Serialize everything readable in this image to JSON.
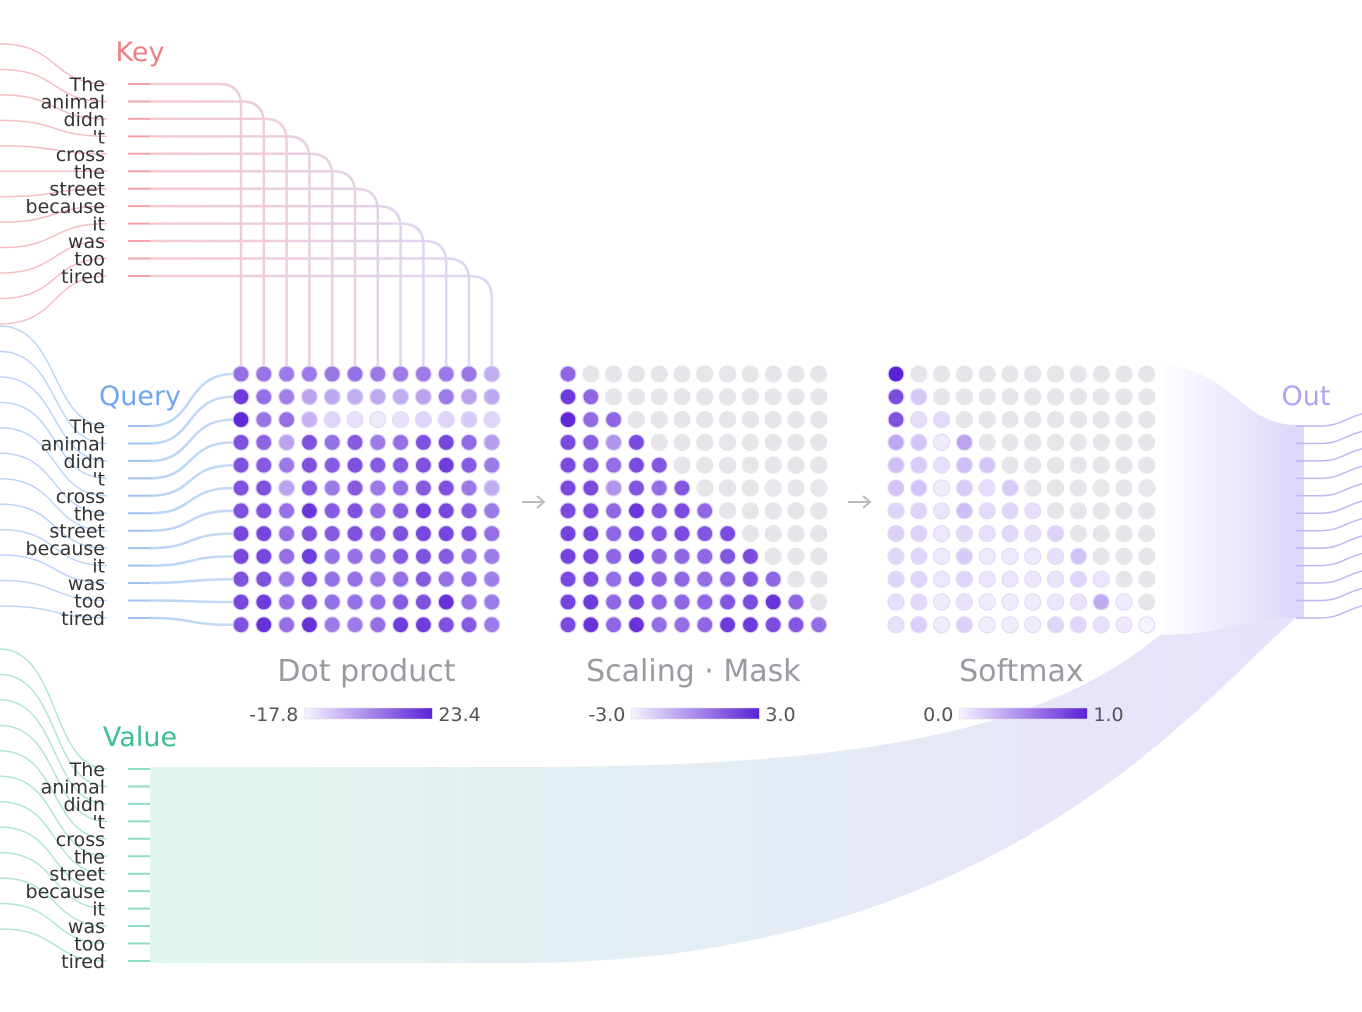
{
  "labels": {
    "key": "Key",
    "query": "Query",
    "value": "Value",
    "out": "Out"
  },
  "tokens": [
    "The",
    "animal",
    "didn",
    "'t",
    "cross",
    "the",
    "street",
    "because",
    "it",
    "was",
    "too",
    "tired"
  ],
  "matrices": [
    {
      "title": "Dot product",
      "range": [
        {
          "value": -17.8,
          "label": "-17.8"
        },
        {
          "value": 23.4,
          "label": "23.4"
        }
      ],
      "values": [
        [
          8,
          7,
          6,
          6,
          7,
          8,
          6,
          6,
          6,
          6,
          7,
          -4
        ],
        [
          18,
          8,
          5,
          -2,
          -3,
          -4,
          -3,
          -4,
          -2,
          6,
          -2,
          -3
        ],
        [
          22,
          7,
          8,
          -5,
          -12,
          -14,
          -16,
          -14,
          -12,
          -12,
          -10,
          -12
        ],
        [
          14,
          10,
          -2,
          14,
          8,
          12,
          6,
          8,
          14,
          16,
          9,
          -1
        ],
        [
          14,
          12,
          6,
          14,
          12,
          14,
          12,
          12,
          14,
          18,
          12,
          6
        ],
        [
          14,
          14,
          -2,
          12,
          6,
          12,
          6,
          8,
          12,
          14,
          6,
          -4
        ],
        [
          14,
          14,
          8,
          19,
          12,
          14,
          8,
          12,
          18,
          16,
          12,
          6
        ],
        [
          16,
          16,
          8,
          14,
          12,
          14,
          12,
          14,
          16,
          16,
          14,
          8
        ],
        [
          16,
          16,
          8,
          18,
          8,
          8,
          8,
          12,
          14,
          12,
          8,
          6
        ],
        [
          14,
          14,
          6,
          14,
          8,
          8,
          6,
          8,
          12,
          8,
          8,
          5
        ],
        [
          16,
          18,
          8,
          14,
          8,
          8,
          8,
          12,
          14,
          20,
          8,
          6
        ],
        [
          14,
          20,
          8,
          20,
          6,
          6,
          8,
          18,
          18,
          14,
          12,
          6
        ]
      ]
    },
    {
      "title": "Scaling · Mask",
      "range": [
        {
          "value": -3,
          "label": "-3.0"
        },
        {
          "value": 3,
          "label": "3.0"
        }
      ],
      "values": [
        [
          1.0,
          null,
          null,
          null,
          null,
          null,
          null,
          null,
          null,
          null,
          null,
          null
        ],
        [
          2.3,
          1.0,
          null,
          null,
          null,
          null,
          null,
          null,
          null,
          null,
          null,
          null
        ],
        [
          2.8,
          0.9,
          1.0,
          null,
          null,
          null,
          null,
          null,
          null,
          null,
          null,
          null
        ],
        [
          1.8,
          1.3,
          -0.3,
          1.8,
          null,
          null,
          null,
          null,
          null,
          null,
          null,
          null
        ],
        [
          1.8,
          1.5,
          0.8,
          1.8,
          1.5,
          null,
          null,
          null,
          null,
          null,
          null,
          null
        ],
        [
          1.8,
          1.8,
          -0.3,
          1.5,
          0.8,
          1.5,
          null,
          null,
          null,
          null,
          null,
          null
        ],
        [
          1.8,
          1.8,
          1.0,
          2.4,
          1.5,
          1.8,
          1.0,
          null,
          null,
          null,
          null,
          null
        ],
        [
          2.0,
          2.0,
          1.0,
          1.8,
          1.5,
          1.8,
          1.5,
          1.8,
          null,
          null,
          null,
          null
        ],
        [
          2.0,
          2.0,
          1.0,
          2.3,
          1.0,
          1.0,
          1.0,
          1.5,
          1.8,
          null,
          null,
          null
        ],
        [
          1.8,
          1.8,
          0.8,
          1.8,
          1.0,
          1.0,
          0.8,
          1.0,
          1.5,
          1.0,
          null,
          null
        ],
        [
          2.0,
          2.3,
          1.0,
          1.8,
          1.0,
          1.0,
          1.0,
          1.5,
          1.8,
          2.5,
          1.0,
          null
        ],
        [
          1.8,
          2.5,
          1.0,
          2.5,
          0.8,
          0.8,
          1.0,
          2.3,
          2.3,
          1.8,
          1.5,
          0.8
        ]
      ]
    },
    {
      "title": "Softmax",
      "range": [
        {
          "value": 0,
          "label": "0.0"
        },
        {
          "value": 1,
          "label": "1.0"
        }
      ],
      "values": [
        [
          1.0,
          null,
          null,
          null,
          null,
          null,
          null,
          null,
          null,
          null,
          null,
          null
        ],
        [
          0.79,
          0.21,
          null,
          null,
          null,
          null,
          null,
          null,
          null,
          null,
          null,
          null
        ],
        [
          0.77,
          0.11,
          0.12,
          null,
          null,
          null,
          null,
          null,
          null,
          null,
          null,
          null
        ],
        [
          0.36,
          0.22,
          0.04,
          0.38,
          null,
          null,
          null,
          null,
          null,
          null,
          null,
          null
        ],
        [
          0.25,
          0.19,
          0.09,
          0.25,
          0.22,
          null,
          null,
          null,
          null,
          null,
          null,
          null
        ],
        [
          0.24,
          0.24,
          0.04,
          0.19,
          0.1,
          0.19,
          null,
          null,
          null,
          null,
          null,
          null
        ],
        [
          0.15,
          0.15,
          0.07,
          0.26,
          0.12,
          0.15,
          0.1,
          null,
          null,
          null,
          null,
          null
        ],
        [
          0.16,
          0.16,
          0.06,
          0.13,
          0.1,
          0.13,
          0.1,
          0.16,
          null,
          null,
          null,
          null
        ],
        [
          0.14,
          0.14,
          0.05,
          0.19,
          0.05,
          0.05,
          0.05,
          0.1,
          0.23,
          null,
          null,
          null
        ],
        [
          0.15,
          0.15,
          0.06,
          0.15,
          0.07,
          0.07,
          0.06,
          0.07,
          0.15,
          0.07,
          null,
          null
        ],
        [
          0.1,
          0.13,
          0.04,
          0.08,
          0.04,
          0.04,
          0.04,
          0.06,
          0.08,
          0.35,
          0.04,
          null
        ],
        [
          0.09,
          0.17,
          0.04,
          0.17,
          0.03,
          0.03,
          0.04,
          0.14,
          0.14,
          0.09,
          0.06,
          0.0
        ]
      ]
    }
  ]
}
